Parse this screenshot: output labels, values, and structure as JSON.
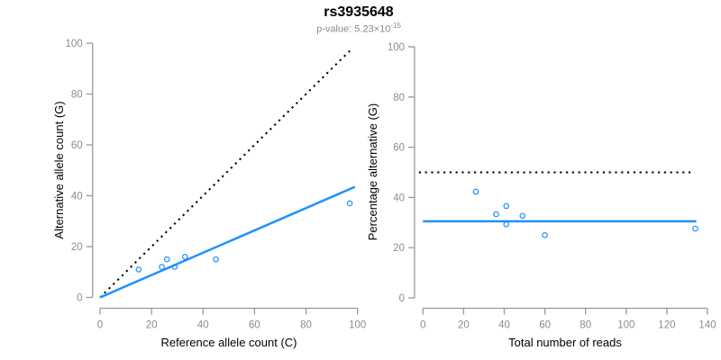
{
  "header": {
    "title": "rs3935648",
    "pvalue_label": "p-value: 5.23×10",
    "pvalue_exponent": "-15"
  },
  "colors": {
    "accent_blue": "#1E90FF",
    "line_black": "#000000",
    "axis_gray": "#999999",
    "tick_label_gray": "#8c8c8c",
    "subtitle_gray": "#8a8a8a"
  },
  "chart_data": [
    {
      "type": "scatter",
      "title": "rs3935648",
      "subtitle": "p-value: 5.23×10^-15",
      "xlabel": "Reference allele count (C)",
      "ylabel": "Alternative allele count (G)",
      "xlim": [
        0,
        100
      ],
      "ylim": [
        0,
        100
      ],
      "xticks": [
        0,
        20,
        40,
        60,
        80,
        100
      ],
      "yticks": [
        0,
        20,
        40,
        60,
        80,
        100
      ],
      "grid": false,
      "legend": null,
      "points": [
        [
          15,
          11
        ],
        [
          24,
          12
        ],
        [
          26,
          15
        ],
        [
          29,
          12
        ],
        [
          33,
          16
        ],
        [
          45,
          15
        ],
        [
          97,
          37
        ]
      ],
      "lines": [
        {
          "name": "identity-50pct-line",
          "x1": 0,
          "y1": 0,
          "x2": 98,
          "y2": 98,
          "style": "dotted",
          "color": "#000000"
        },
        {
          "name": "fit-line",
          "x1": 0,
          "y1": 0,
          "x2": 99,
          "y2": 43.5,
          "style": "solid",
          "color": "#1E90FF"
        }
      ]
    },
    {
      "type": "scatter",
      "title": "rs3935648",
      "subtitle": "p-value: 5.23×10^-15",
      "xlabel": "Total number of reads",
      "ylabel": "Percentage alternative (G)",
      "xlim": [
        0,
        140
      ],
      "ylim": [
        0,
        100
      ],
      "xticks": [
        0,
        20,
        40,
        60,
        80,
        100,
        120,
        140
      ],
      "yticks": [
        0,
        20,
        40,
        60,
        80,
        100
      ],
      "grid": false,
      "legend": null,
      "points": [
        [
          26,
          42.3
        ],
        [
          36,
          33.3
        ],
        [
          41,
          36.6
        ],
        [
          41,
          29.3
        ],
        [
          49,
          32.7
        ],
        [
          60,
          25.0
        ],
        [
          134,
          27.6
        ]
      ],
      "lines": [
        {
          "name": "expected-50pct-line",
          "x1": -2,
          "y1": 50,
          "x2": 133.5,
          "y2": 50,
          "style": "dotted",
          "color": "#000000"
        },
        {
          "name": "mean-percentage-line",
          "x1": 0,
          "y1": 30.5,
          "x2": 134.5,
          "y2": 30.5,
          "style": "solid",
          "color": "#1E90FF"
        }
      ]
    }
  ]
}
